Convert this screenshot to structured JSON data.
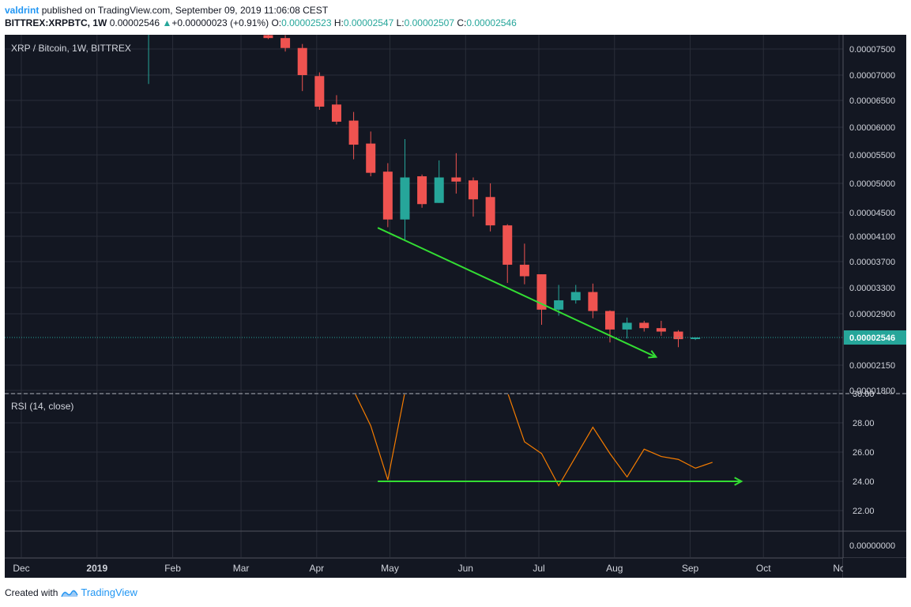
{
  "header": {
    "author": "valdrint",
    "published_text": "published on TradingView.com, September 09, 2019 11:06:08 CEST",
    "symbol": "BITTREX:XRPBTC, 1W",
    "last": "0.00002546",
    "change_arrow": "▲",
    "change": "+0.00000023 (+0.91%)",
    "o_label": "O:",
    "o": "0.00002523",
    "h_label": "H:",
    "h": "0.00002547",
    "l_label": "L:",
    "l": "0.00002507",
    "c_label": "C:",
    "c": "0.00002546"
  },
  "footer": {
    "created_with": "Created with",
    "brand": "TradingView"
  },
  "chart_data": {
    "type": "candlestick",
    "pane_title": "XRP / Bitcoin, 1W, BITTREX",
    "price_axis_ticks": [
      "0.00007500",
      "0.00007000",
      "0.00006500",
      "0.00006000",
      "0.00005500",
      "0.00005000",
      "0.00004500",
      "0.00004100",
      "0.00003700",
      "0.00003300",
      "0.00002900",
      "0.00002546",
      "0.00002150",
      "0.00001800"
    ],
    "last_price_label": "0.00002546",
    "time_axis_labels": [
      "Dec",
      "2019",
      "Feb",
      "Mar",
      "Apr",
      "May",
      "Jun",
      "Jul",
      "Aug",
      "Sep",
      "Oct",
      "No"
    ],
    "candles": [
      {
        "date": "2019-01-21",
        "o": 7.94e-05,
        "h": 8e-05,
        "l": 6.82e-05,
        "c": 7.94e-05
      },
      {
        "date": "2019-03-11",
        "o": 7.78e-05,
        "h": 7.85e-05,
        "l": 7.7e-05,
        "c": 7.72e-05
      },
      {
        "date": "2019-03-18",
        "o": 7.72e-05,
        "h": 7.78e-05,
        "l": 7.45e-05,
        "c": 7.52e-05
      },
      {
        "date": "2019-03-25",
        "o": 7.52e-05,
        "h": 7.6e-05,
        "l": 6.68e-05,
        "c": 7e-05
      },
      {
        "date": "2019-04-01",
        "o": 6.98e-05,
        "h": 7.05e-05,
        "l": 6.32e-05,
        "c": 6.38e-05
      },
      {
        "date": "2019-04-08",
        "o": 6.42e-05,
        "h": 6.6e-05,
        "l": 6.05e-05,
        "c": 6.1e-05
      },
      {
        "date": "2019-04-15",
        "o": 6.12e-05,
        "h": 6.28e-05,
        "l": 5.42e-05,
        "c": 5.68e-05
      },
      {
        "date": "2019-04-22",
        "o": 5.7e-05,
        "h": 5.92e-05,
        "l": 5.12e-05,
        "c": 5.18e-05
      },
      {
        "date": "2019-04-29",
        "o": 5.2e-05,
        "h": 5.35e-05,
        "l": 4.25e-05,
        "c": 4.38e-05
      },
      {
        "date": "2019-05-06",
        "o": 4.38e-05,
        "h": 5.78e-05,
        "l": 4.03e-05,
        "c": 5.1e-05
      },
      {
        "date": "2019-05-13",
        "o": 5.12e-05,
        "h": 5.15e-05,
        "l": 4.58e-05,
        "c": 4.64e-05
      },
      {
        "date": "2019-05-20",
        "o": 4.66e-05,
        "h": 5.4e-05,
        "l": 4.66e-05,
        "c": 5.1e-05
      },
      {
        "date": "2019-05-27",
        "o": 5.1e-05,
        "h": 5.53e-05,
        "l": 4.82e-05,
        "c": 5.03e-05
      },
      {
        "date": "2019-06-03",
        "o": 5.05e-05,
        "h": 5.1e-05,
        "l": 4.43e-05,
        "c": 4.72e-05
      },
      {
        "date": "2019-06-10",
        "o": 4.76e-05,
        "h": 5e-05,
        "l": 4.18e-05,
        "c": 4.28e-05
      },
      {
        "date": "2019-06-17",
        "o": 4.28e-05,
        "h": 4.3e-05,
        "l": 3.37e-05,
        "c": 3.65e-05
      },
      {
        "date": "2019-06-24",
        "o": 3.65e-05,
        "h": 3.98e-05,
        "l": 3.35e-05,
        "c": 3.47e-05
      },
      {
        "date": "2019-07-01",
        "o": 3.5e-05,
        "h": 3.5e-05,
        "l": 2.73e-05,
        "c": 2.96e-05
      },
      {
        "date": "2019-07-08",
        "o": 2.96e-05,
        "h": 3.34e-05,
        "l": 2.87e-05,
        "c": 3.1e-05
      },
      {
        "date": "2019-07-15",
        "o": 3.1e-05,
        "h": 3.34e-05,
        "l": 3.05e-05,
        "c": 3.23e-05
      },
      {
        "date": "2019-07-22",
        "o": 3.23e-05,
        "h": 3.36e-05,
        "l": 2.83e-05,
        "c": 2.94e-05
      },
      {
        "date": "2019-07-29",
        "o": 2.94e-05,
        "h": 2.95e-05,
        "l": 2.47e-05,
        "c": 2.66e-05
      },
      {
        "date": "2019-08-05",
        "o": 2.66e-05,
        "h": 2.84e-05,
        "l": 2.53e-05,
        "c": 2.76e-05
      },
      {
        "date": "2019-08-12",
        "o": 2.76e-05,
        "h": 2.79e-05,
        "l": 2.63e-05,
        "c": 2.68e-05
      },
      {
        "date": "2019-08-19",
        "o": 2.68e-05,
        "h": 2.79e-05,
        "l": 2.57e-05,
        "c": 2.63e-05
      },
      {
        "date": "2019-08-26",
        "o": 2.63e-05,
        "h": 2.65e-05,
        "l": 2.4e-05,
        "c": 2.52e-05
      },
      {
        "date": "2019-09-02",
        "o": 2.523e-05,
        "h": 2.547e-05,
        "l": 2.507e-05,
        "c": 2.546e-05
      }
    ],
    "price_trendline": {
      "from": {
        "date": "2019-04-26",
        "price": 4.24e-05
      },
      "to": {
        "date": "2019-08-18",
        "price": 2.26e-05
      }
    },
    "rsi": {
      "title": "RSI (14, close)",
      "ticks": [
        "30.00",
        "28.00",
        "26.00",
        "24.00",
        "22.00"
      ],
      "bottom_axis_label": "0.00000000",
      "points": [
        {
          "date": "2019-04-15",
          "value": 30.2
        },
        {
          "date": "2019-04-22",
          "value": 27.8
        },
        {
          "date": "2019-04-29",
          "value": 24.1
        },
        {
          "date": "2019-05-06",
          "value": 30.1
        },
        {
          "date": "2019-06-17",
          "value": 30.1
        },
        {
          "date": "2019-06-24",
          "value": 26.7
        },
        {
          "date": "2019-07-01",
          "value": 25.9
        },
        {
          "date": "2019-07-08",
          "value": 23.7
        },
        {
          "date": "2019-07-22",
          "value": 27.7
        },
        {
          "date": "2019-07-29",
          "value": 25.9
        },
        {
          "date": "2019-08-05",
          "value": 24.3
        },
        {
          "date": "2019-08-12",
          "value": 26.2
        },
        {
          "date": "2019-08-19",
          "value": 25.7
        },
        {
          "date": "2019-08-26",
          "value": 25.5
        },
        {
          "date": "2019-09-02",
          "value": 24.9
        },
        {
          "date": "2019-09-09",
          "value": 25.3
        }
      ],
      "trendline": {
        "from": {
          "date": "2019-04-26",
          "value": 24.0
        },
        "to": {
          "date": "2019-09-22",
          "value": 24.0
        }
      }
    },
    "colors": {
      "background": "#131722",
      "up": "#26a69a",
      "down": "#ef5350",
      "rsi_line": "#f57c00",
      "annotation": "#33dd33",
      "grid": "#2a2e39",
      "last_price": "#26a69a"
    }
  }
}
